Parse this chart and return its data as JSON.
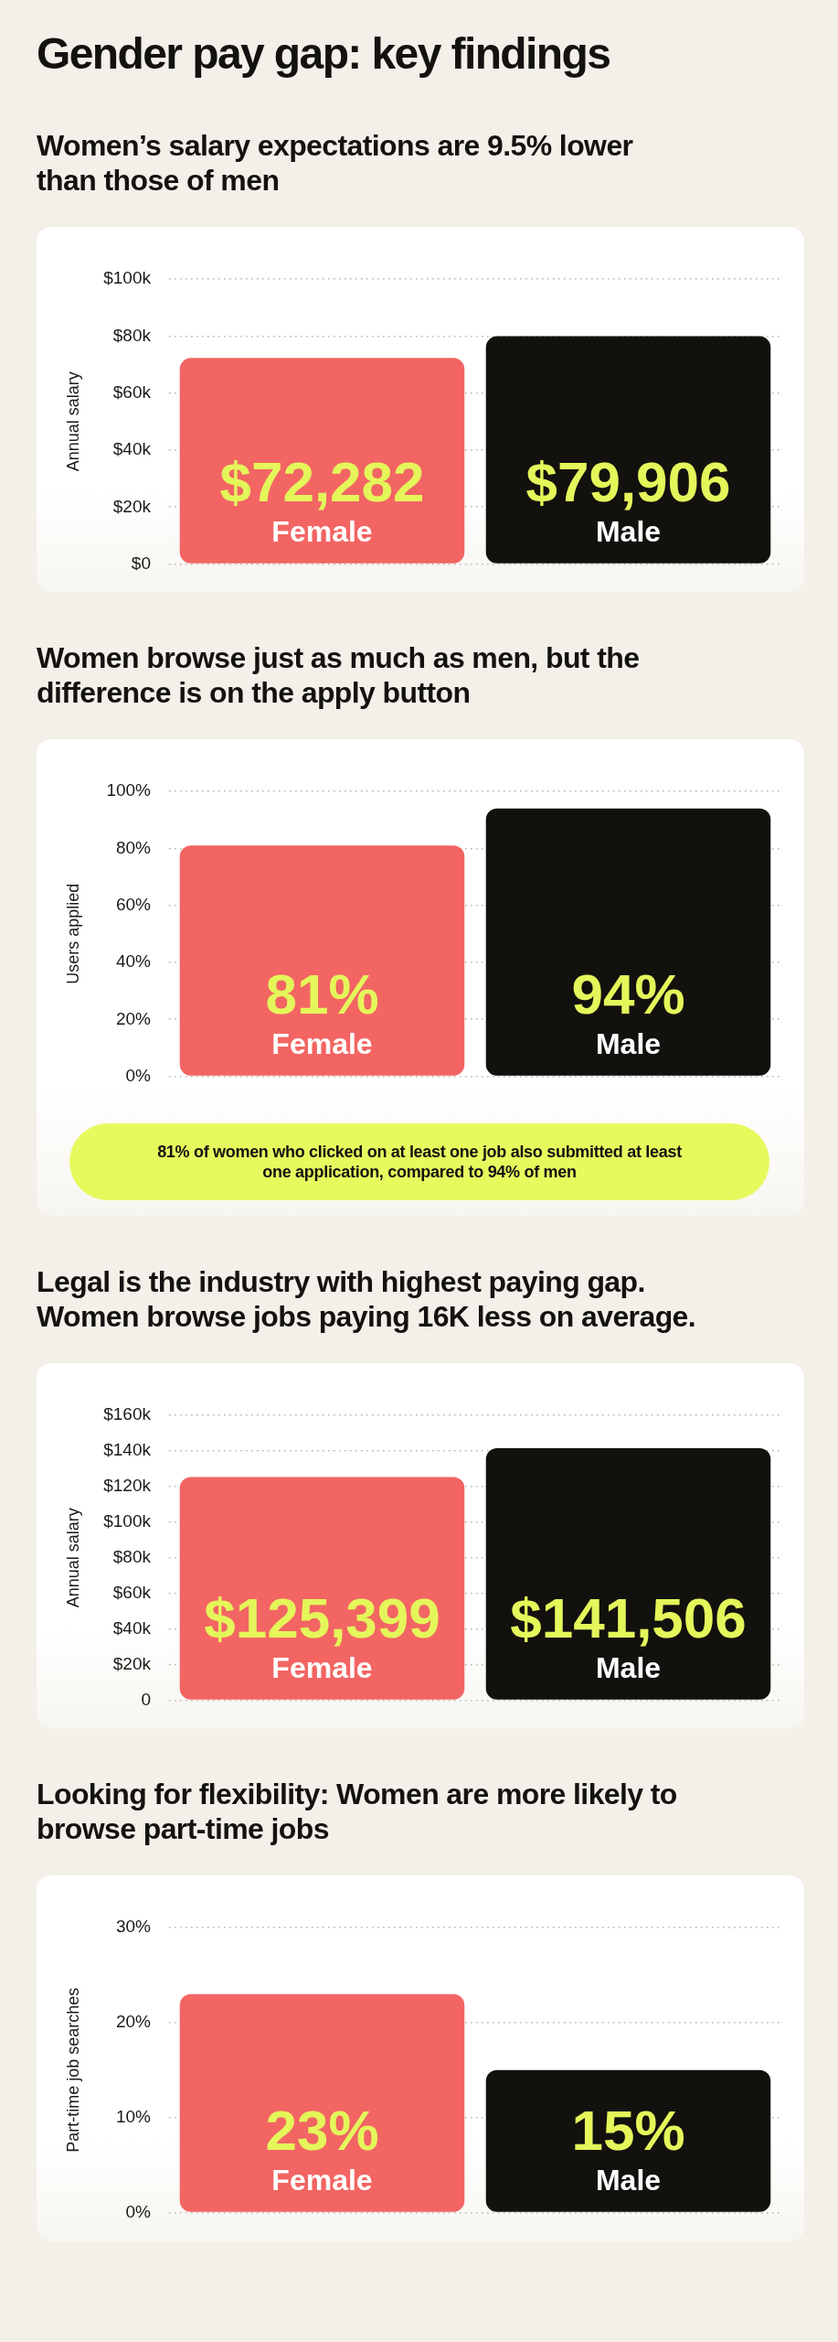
{
  "chart_data": [
    {
      "type": "other",
      "title": "Gender pay gap: key findings"
    },
    {
      "type": "bar",
      "title": "Women’s salary expectations are 9.5% lower\nthan those of men",
      "ylabel": "Annual salary",
      "categories": [
        "Female",
        "Male"
      ],
      "values": [
        72282,
        79906
      ],
      "colors": [
        "#f26563",
        "#12110e"
      ],
      "value_labels": [
        "$72,282",
        "$79,906"
      ],
      "ylim": [
        0,
        100000
      ],
      "yticks": [
        {
          "value": 0,
          "label": "$0"
        },
        {
          "value": 20000,
          "label": "$20k"
        },
        {
          "value": 40000,
          "label": "$40k"
        },
        {
          "value": 60000,
          "label": "$60k"
        },
        {
          "value": 80000,
          "label": "$80k"
        },
        {
          "value": 100000,
          "label": "$100k"
        }
      ],
      "grid": "y"
    },
    {
      "type": "bar",
      "title": "Women browse just as much as men, but the\ndifference is on the apply button",
      "ylabel": "Users applied",
      "categories": [
        "Female",
        "Male"
      ],
      "values": [
        81,
        94
      ],
      "colors": [
        "#f26563",
        "#12110e"
      ],
      "value_labels": [
        "81%",
        "94%"
      ],
      "ylim": [
        0,
        100
      ],
      "yticks": [
        {
          "value": 0,
          "label": "0%"
        },
        {
          "value": 20,
          "label": "20%"
        },
        {
          "value": 40,
          "label": "40%"
        },
        {
          "value": 60,
          "label": "60%"
        },
        {
          "value": 80,
          "label": "80%"
        },
        {
          "value": 100,
          "label": "100%"
        }
      ],
      "grid": "y",
      "annotations": [
        "81% of women who clicked on at least one job also submitted at least one application, compared to 94% of men"
      ]
    },
    {
      "type": "bar",
      "title": "Legal is the industry with highest paying gap.\nWomen browse jobs paying 16K less on average.",
      "ylabel": "Annual salary",
      "categories": [
        "Female",
        "Male"
      ],
      "values": [
        125399,
        141506
      ],
      "colors": [
        "#f26563",
        "#12110e"
      ],
      "value_labels": [
        "$125,399",
        "$141,506"
      ],
      "ylim": [
        0,
        160000
      ],
      "yticks": [
        0,
        {
          "value": 20000,
          "label": "$20k"
        },
        {
          "value": 40000,
          "label": "$40k"
        },
        {
          "value": 60000,
          "label": "$60k"
        },
        {
          "value": 80000,
          "label": "$80k"
        },
        {
          "value": 100000,
          "label": "$100k"
        },
        {
          "value": 120000,
          "label": "$120k"
        },
        {
          "value": 140000,
          "label": "$140k"
        },
        {
          "value": 160000,
          "label": "$160k"
        }
      ],
      "grid": "y"
    },
    {
      "type": "bar",
      "title": "Looking for flexibility: Women are more likely to\nbrowse part-time jobs",
      "ylabel": "Part-time job searches",
      "categories": [
        "Female",
        "Male"
      ],
      "values": [
        23,
        15
      ],
      "colors": [
        "#f26563",
        "#12110e"
      ],
      "value_labels": [
        "23%",
        "15%"
      ],
      "ylim": [
        0,
        30
      ],
      "yticks": [
        {
          "value": 0,
          "label": "0%"
        },
        {
          "value": 10,
          "label": "10%"
        },
        {
          "value": 20,
          "label": "20%"
        },
        {
          "value": 30,
          "label": "30%"
        }
      ],
      "grid": "y"
    }
  ]
}
